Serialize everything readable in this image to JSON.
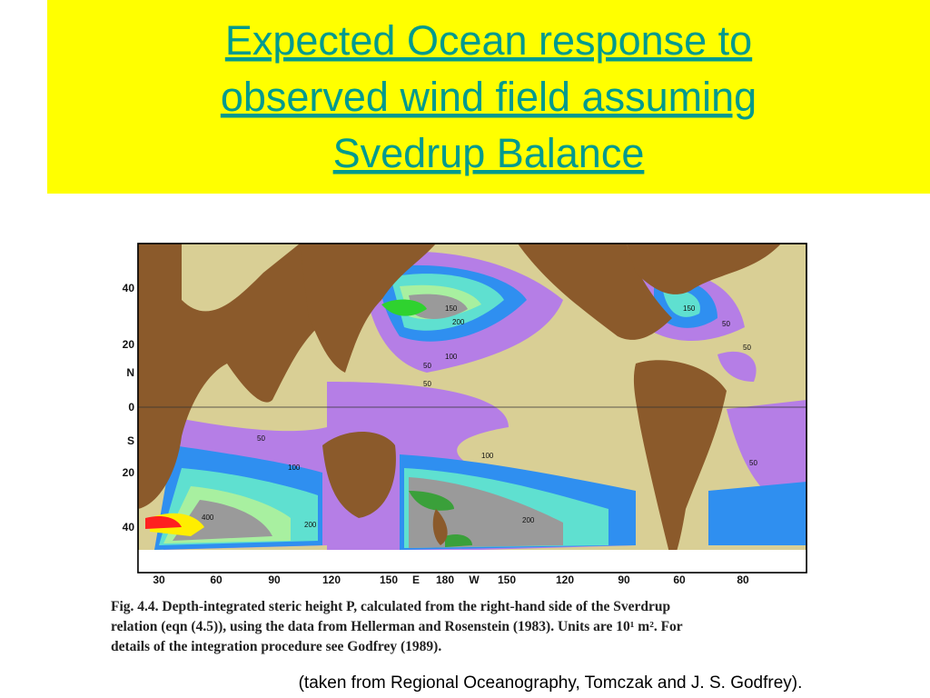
{
  "header": {
    "title": [
      "Expected Ocean response to",
      "observed wind field assuming",
      "Svedrup Balance"
    ]
  },
  "figure": {
    "lat_labels": [
      "40",
      "20",
      "N",
      "0",
      "S",
      "20",
      "40"
    ],
    "lon_labels": [
      "30",
      "60",
      "90",
      "120",
      "150",
      "E",
      "180",
      "W",
      "150",
      "120",
      "90",
      "60",
      "80"
    ],
    "contour_labels": [
      "150",
      "200",
      "100",
      "50",
      "50",
      "150",
      "50",
      "50",
      "50",
      "100",
      "100",
      "50",
      "400",
      "200",
      "200"
    ],
    "caption": [
      "Fig. 4.4.  Depth-integrated steric height P, calculated from the right-hand side of the Sverdrup",
      "relation (eqn (4.5)), using the data from Hellerman and Rosenstein (1983). Units are 10¹ m². For",
      "details of the integration procedure see Godfrey (1989)."
    ]
  },
  "credit": "(taken from Regional Oceanography, Tomczak and J. S. Godfrey)."
}
